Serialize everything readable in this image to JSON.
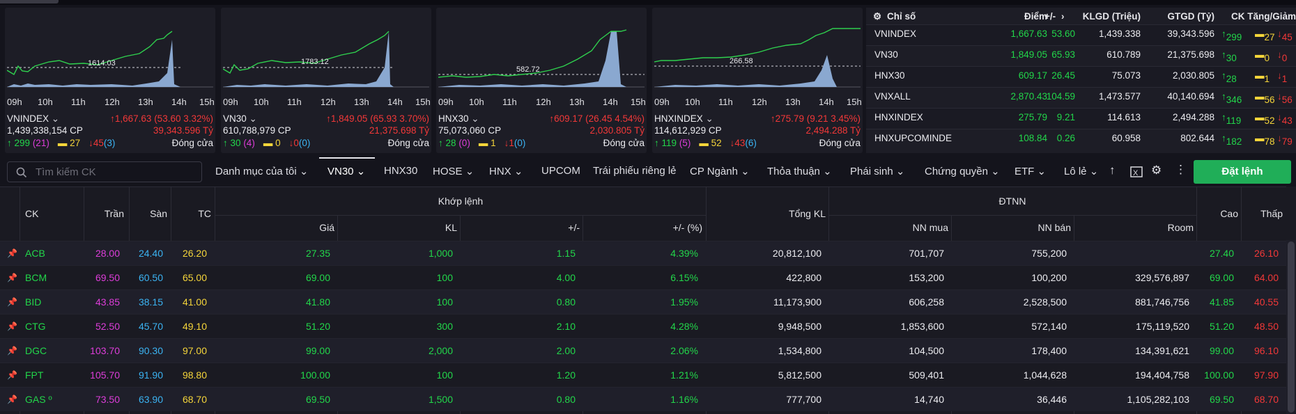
{
  "cards": [
    {
      "name": "VNINDEX",
      "ref": "1614.03",
      "change": "1,667.63 (53.60 3.32%)",
      "volume": "1,439,338,154 CP",
      "value": "39,343.596 Tỷ",
      "up": "299",
      "ceil": "(21)",
      "same": "27",
      "down": "45",
      "floor": "(3)",
      "status": "Đóng cửa"
    },
    {
      "name": "VN30",
      "ref": "1783.12",
      "change": "1,849.05 (65.93 3.70%)",
      "volume": "610,788,979 CP",
      "value": "21,375.698 Tỷ",
      "up": "30",
      "ceil": "(4)",
      "same": "0",
      "down": "0",
      "floor": "(0)",
      "status": "Đóng cửa"
    },
    {
      "name": "HNX30",
      "ref": "582.72",
      "change": "609.17 (26.45 4.54%)",
      "volume": "75,073,060 CP",
      "value": "2,030.805 Tỷ",
      "up": "28",
      "ceil": "(0)",
      "same": "1",
      "down": "1",
      "floor": "(0)",
      "status": "Đóng cửa"
    },
    {
      "name": "HNXINDEX",
      "ref": "266.58",
      "change": "275.79 (9.21 3.45%)",
      "volume": "114,612,929 CP",
      "value": "2,494.288 Tỷ",
      "up": "119",
      "ceil": "(5)",
      "same": "52",
      "down": "43",
      "floor": "(6)",
      "status": "Đóng cửa"
    }
  ],
  "card_times": [
    "09h",
    "10h",
    "11h",
    "12h",
    "13h",
    "14h",
    "15h"
  ],
  "index_table": {
    "headers": {
      "name": "Chỉ số",
      "point": "Điểm",
      "change": "+/-",
      "klgd": "KLGD (Triệu)",
      "gtgd": "GTGD (Tỷ)",
      "updown": "CK Tăng/Giảm"
    },
    "rows": [
      {
        "name": "VNINDEX",
        "point": "1,667.63",
        "change": "53.60",
        "klgd": "1,439.338",
        "gtgd": "39,343.596",
        "up": "299",
        "same": "27",
        "down": "45"
      },
      {
        "name": "VN30",
        "point": "1,849.05",
        "change": "65.93",
        "klgd": "610.789",
        "gtgd": "21,375.698",
        "up": "30",
        "same": "0",
        "down": "0"
      },
      {
        "name": "HNX30",
        "point": "609.17",
        "change": "26.45",
        "klgd": "75.073",
        "gtgd": "2,030.805",
        "up": "28",
        "same": "1",
        "down": "1"
      },
      {
        "name": "VNXALL",
        "point": "2,870.43",
        "change": "104.59",
        "klgd": "1,473.577",
        "gtgd": "40,140.694",
        "up": "346",
        "same": "56",
        "down": "56"
      },
      {
        "name": "HNXINDEX",
        "point": "275.79",
        "change": "9.21",
        "klgd": "114.613",
        "gtgd": "2,494.288",
        "up": "119",
        "same": "52",
        "down": "43"
      },
      {
        "name": "HNXUPCOMINDE",
        "point": "108.84",
        "change": "0.26",
        "klgd": "60.958",
        "gtgd": "802.644",
        "up": "182",
        "same": "78",
        "down": "79"
      }
    ]
  },
  "toolbar": {
    "search_placeholder": "Tìm kiếm CK",
    "tabs": [
      "Danh mục của tôi",
      "VN30",
      "HNX30",
      "HOSE",
      "HNX",
      "UPCOM",
      "Trái phiếu riêng lẻ",
      "CP Ngành",
      "Thỏa thuận",
      "Phái sinh",
      "Chứng quyền",
      "ETF",
      "Lô lẻ"
    ],
    "active_tab": "VN30",
    "order_button": "Đặt lệnh"
  },
  "table": {
    "headers": {
      "ck": "CK",
      "tran": "Trần",
      "san": "Sàn",
      "tc": "TC",
      "khop": "Khớp lệnh",
      "gia": "Giá",
      "kl": "KL",
      "chg": "+/-",
      "pct": "+/- (%)",
      "tongkl": "Tổng KL",
      "dtnn": "ĐTNN",
      "nnmua": "NN mua",
      "nnban": "NN bán",
      "room": "Room",
      "cao": "Cao",
      "thap": "Thấp"
    },
    "rows": [
      {
        "ck": "ACB",
        "tran": "28.00",
        "san": "24.40",
        "tc": "26.20",
        "gia": "27.35",
        "kl": "1,000",
        "chg": "1.15",
        "pct": "4.39%",
        "tongkl": "20,812,100",
        "nnmua": "701,707",
        "nnban": "755,200",
        "room": "",
        "cao": "27.40",
        "thap": "26.10"
      },
      {
        "ck": "BCM",
        "tran": "69.50",
        "san": "60.50",
        "tc": "65.00",
        "gia": "69.00",
        "kl": "100",
        "chg": "4.00",
        "pct": "6.15%",
        "tongkl": "422,800",
        "nnmua": "153,200",
        "nnban": "100,200",
        "room": "329,576,897",
        "cao": "69.00",
        "thap": "64.00"
      },
      {
        "ck": "BID",
        "tran": "43.85",
        "san": "38.15",
        "tc": "41.00",
        "gia": "41.80",
        "kl": "100",
        "chg": "0.80",
        "pct": "1.95%",
        "tongkl": "11,173,900",
        "nnmua": "606,258",
        "nnban": "2,528,500",
        "room": "881,746,756",
        "cao": "41.85",
        "thap": "40.55"
      },
      {
        "ck": "CTG",
        "tran": "52.50",
        "san": "45.70",
        "tc": "49.10",
        "gia": "51.20",
        "kl": "300",
        "chg": "2.10",
        "pct": "4.28%",
        "tongkl": "9,948,500",
        "nnmua": "1,853,600",
        "nnban": "572,140",
        "room": "175,119,520",
        "cao": "51.20",
        "thap": "48.50"
      },
      {
        "ck": "DGC",
        "tran": "103.70",
        "san": "90.30",
        "tc": "97.00",
        "gia": "99.00",
        "kl": "2,000",
        "chg": "2.00",
        "pct": "2.06%",
        "tongkl": "1,534,800",
        "nnmua": "104,500",
        "nnban": "178,400",
        "room": "134,391,621",
        "cao": "99.00",
        "thap": "96.10"
      },
      {
        "ck": "FPT",
        "tran": "105.70",
        "san": "91.90",
        "tc": "98.80",
        "gia": "100.00",
        "kl": "100",
        "chg": "1.20",
        "pct": "1.21%",
        "tongkl": "5,812,500",
        "nnmua": "509,401",
        "nnban": "1,044,628",
        "room": "194,404,758",
        "cao": "100.00",
        "thap": "97.90"
      },
      {
        "ck": "GAS º",
        "tran": "73.50",
        "san": "63.90",
        "tc": "68.70",
        "gia": "69.50",
        "kl": "1,500",
        "chg": "0.80",
        "pct": "1.16%",
        "tongkl": "777,700",
        "nnmua": "14,740",
        "nnban": "36,446",
        "room": "1,105,282,103",
        "cao": "69.50",
        "thap": "68.70"
      }
    ]
  },
  "colors": {
    "up": "#22d64a",
    "down": "#f23838",
    "ref": "#f5d53a",
    "ceil": "#dd3dd9",
    "floor": "#3bb3f2",
    "accent": "#20ae58"
  }
}
